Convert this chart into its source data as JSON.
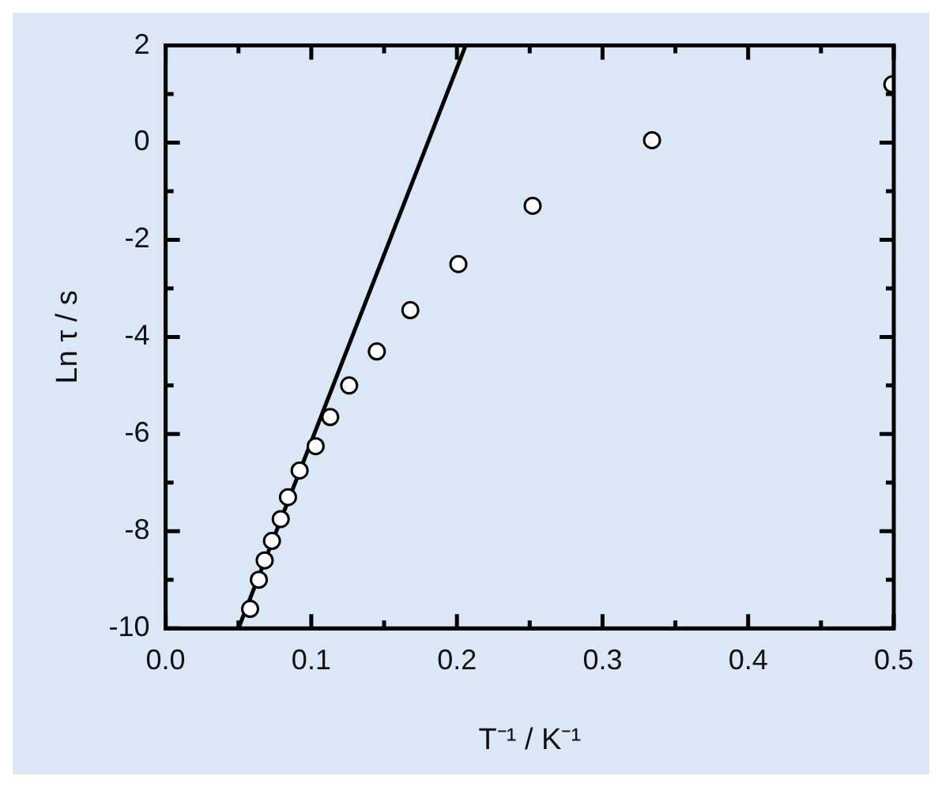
{
  "chart_data": {
    "type": "scatter",
    "xlabel": "T⁻¹ / K⁻¹",
    "ylabel": "Ln τ / s",
    "xlim": [
      0,
      0.5
    ],
    "ylim": [
      -10,
      2
    ],
    "xticks": [
      {
        "value": 0,
        "label": "0.0"
      },
      {
        "value": 0.05,
        "label": null
      },
      {
        "value": 0.1,
        "label": "0.1"
      },
      {
        "value": 0.15,
        "label": null
      },
      {
        "value": 0.2,
        "label": "0.2"
      },
      {
        "value": 0.25,
        "label": null
      },
      {
        "value": 0.3,
        "label": "0.3"
      },
      {
        "value": 0.35,
        "label": null
      },
      {
        "value": 0.4,
        "label": "0.4"
      },
      {
        "value": 0.45,
        "label": null
      },
      {
        "value": 0.5,
        "label": "0.5"
      }
    ],
    "yticks": [
      -10,
      {
        "value": -9,
        "label": null
      },
      -8,
      {
        "value": -7,
        "label": null
      },
      -6,
      {
        "value": -5,
        "label": null
      },
      -4,
      {
        "value": -3,
        "label": null
      },
      -2,
      {
        "value": -1,
        "label": null
      },
      0,
      {
        "value": 1,
        "label": null
      },
      2
    ],
    "grid": false,
    "legend": false,
    "series": [
      {
        "color": "#000000",
        "marker": "circle",
        "x": [
          0.058,
          0.064,
          0.068,
          0.073,
          0.079,
          0.084,
          0.092,
          0.103,
          0.113,
          0.126,
          0.145,
          0.168,
          0.201,
          0.252,
          0.334,
          0.499
        ],
        "values": [
          -9.6,
          -9.0,
          -8.6,
          -8.2,
          -7.75,
          -7.3,
          -6.75,
          -6.25,
          -5.65,
          -5.0,
          -4.3,
          -3.45,
          -2.5,
          -1.3,
          0.05,
          1.2
        ]
      },
      {
        "type": "line",
        "color": "#000000",
        "marker": "none",
        "line_style": "solid",
        "x": [
          0.05,
          0.206
        ],
        "values": [
          -10,
          2
        ]
      }
    ]
  }
}
